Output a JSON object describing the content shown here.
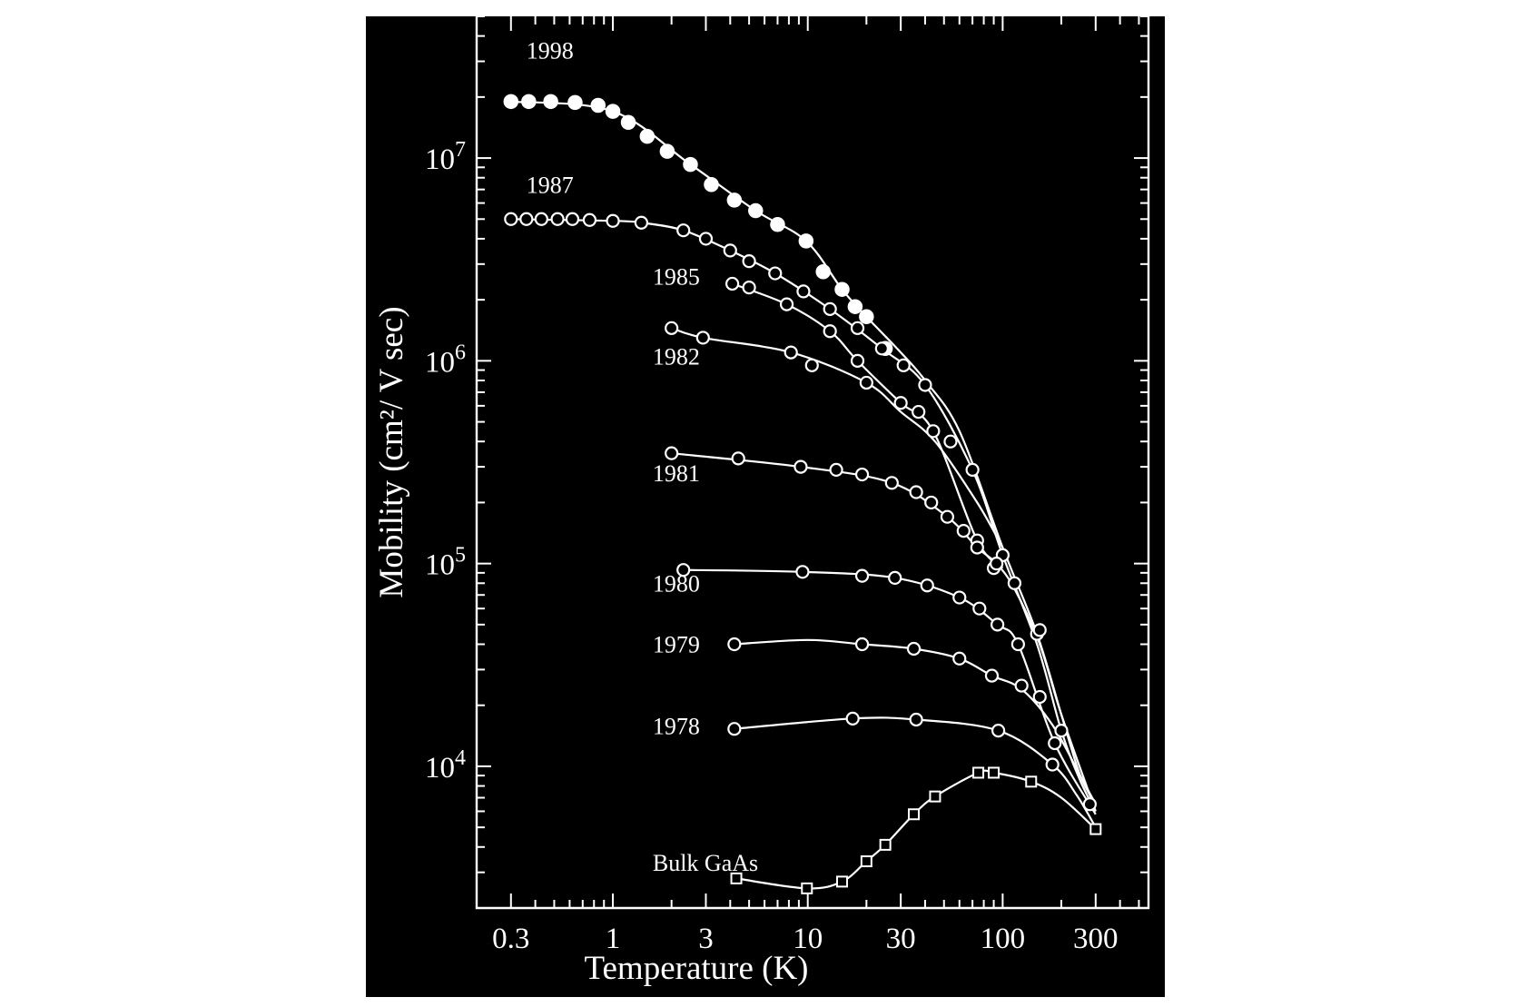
{
  "chart_data": {
    "type": "scatter",
    "title": "",
    "xlabel": "Temperature (K)",
    "ylabel": "Mobility (cm²/ V sec)",
    "x_scale": "log",
    "y_scale": "log",
    "xlim": [
      0.2,
      560
    ],
    "ylim": [
      2000,
      50000000
    ],
    "x_ticks": [
      0.3,
      1,
      3,
      10,
      30,
      100,
      300
    ],
    "x_tick_labels": [
      "0.3",
      "1",
      "3",
      "10",
      "30",
      "100",
      "300"
    ],
    "y_ticks": [
      10000,
      100000,
      1000000,
      10000000
    ],
    "y_tick_labels": [
      {
        "base": "10",
        "exp": "4"
      },
      {
        "base": "10",
        "exp": "5"
      },
      {
        "base": "10",
        "exp": "6"
      },
      {
        "base": "10",
        "exp": "7"
      }
    ],
    "grid": false,
    "legend": "none",
    "colors": {
      "background": "#000000",
      "foreground": "#ffffff"
    },
    "series": [
      {
        "name": "1998",
        "marker": "filled-circle",
        "x": [
          0.3,
          0.37,
          0.48,
          0.64,
          0.84,
          1.0,
          1.2,
          1.5,
          1.9,
          2.5,
          3.2,
          4.2,
          5.4,
          7,
          9.8,
          12,
          15,
          17.5,
          20,
          25
        ],
        "y": [
          19000000,
          19000000,
          19000000,
          18800000,
          18200000,
          17000000,
          15000000,
          12800000,
          10800000,
          9300000,
          7400000,
          6200000,
          5500000,
          4700000,
          3900000,
          2750000,
          2250000,
          1850000,
          1650000,
          1150000
        ]
      },
      {
        "name": "1987",
        "marker": "open-circle",
        "x": [
          0.3,
          0.36,
          0.43,
          0.52,
          0.62,
          0.76,
          1.0,
          1.4,
          2.3,
          3.0,
          4.0,
          5.0,
          6.8,
          9.5,
          13,
          18,
          24,
          31,
          40,
          54,
          70,
          100,
          150,
          200
        ],
        "y": [
          5000000,
          5000000,
          5000000,
          5000000,
          5000000,
          4950000,
          4900000,
          4800000,
          4400000,
          4000000,
          3500000,
          3100000,
          2700000,
          2200000,
          1800000,
          1450000,
          1150000,
          950000,
          760000,
          400000,
          290000,
          110000,
          45000,
          15000
        ]
      },
      {
        "name": "1985",
        "marker": "open-circle",
        "x": [
          4.1,
          5.0,
          7.8,
          13,
          18,
          30,
          37,
          44,
          74,
          90
        ],
        "y": [
          2400000,
          2300000,
          1900000,
          1400000,
          1000000,
          620000,
          560000,
          450000,
          130000,
          95000
        ]
      },
      {
        "name": "1982",
        "marker": "open-circle",
        "x": [
          2.0,
          2.9,
          8.2,
          10.5,
          20
        ],
        "y": [
          1450000,
          1300000,
          1100000,
          950000,
          780000
        ]
      },
      {
        "name": "1981",
        "marker": "open-circle",
        "x": [
          2.0,
          4.4,
          9.2,
          14,
          19,
          27,
          36,
          43,
          52,
          63,
          74,
          93,
          115,
          155
        ],
        "y": [
          350000,
          330000,
          300000,
          290000,
          275000,
          250000,
          225000,
          200000,
          170000,
          145000,
          120000,
          100000,
          80000,
          47000
        ]
      },
      {
        "name": "1980",
        "marker": "open-circle",
        "x": [
          2.3,
          9.4,
          19,
          28,
          41,
          60,
          76,
          94,
          120,
          185
        ],
        "y": [
          93000,
          91000,
          87000,
          85000,
          78000,
          68000,
          60000,
          50000,
          40000,
          13000
        ]
      },
      {
        "name": "1979",
        "marker": "open-circle",
        "x": [
          4.2,
          19,
          35,
          60,
          88,
          125,
          155
        ],
        "y": [
          40000,
          40000,
          38000,
          34000,
          28000,
          25000,
          22000
        ]
      },
      {
        "name": "1978",
        "marker": "open-circle",
        "x": [
          4.2,
          17,
          36,
          95,
          180,
          280
        ],
        "y": [
          15300,
          17200,
          17000,
          15000,
          10200,
          6500
        ]
      },
      {
        "name": "Bulk GaAs",
        "marker": "open-square",
        "x": [
          4.3,
          9.9,
          15,
          20,
          25,
          35,
          45,
          75,
          90,
          140,
          300
        ],
        "y": [
          2800,
          2500,
          2700,
          3400,
          4100,
          5800,
          7100,
          9300,
          9300,
          8400,
          4900
        ]
      }
    ],
    "curves": [
      {
        "series": "1998",
        "x": [
          0.3,
          1.0,
          2.5,
          5.4,
          9.8,
          15,
          20,
          30,
          40,
          60,
          100,
          150,
          200,
          250,
          300
        ],
        "y": [
          19000000,
          17000000,
          9300000,
          5500000,
          3900000,
          2250000,
          1650000,
          1100000,
          800000,
          450000,
          120000,
          45000,
          18000,
          9000,
          6500
        ]
      },
      {
        "series": "1987",
        "x": [
          0.3,
          1.0,
          1.4,
          2.3,
          4.0,
          6.8,
          13,
          24,
          40,
          70,
          100,
          150,
          200,
          250,
          300
        ],
        "y": [
          5000000,
          4900000,
          4800000,
          4400000,
          3500000,
          2700000,
          1800000,
          1150000,
          760000,
          290000,
          110000,
          40000,
          15000,
          8500,
          6000
        ]
      },
      {
        "series": "1985",
        "x": [
          4.1,
          7.8,
          13,
          18,
          30,
          44,
          74,
          100
        ],
        "y": [
          2400000,
          1900000,
          1400000,
          1000000,
          620000,
          450000,
          130000,
          95000
        ]
      },
      {
        "series": "1982",
        "x": [
          2.0,
          2.9,
          8.2,
          20,
          30,
          45,
          74,
          100
        ],
        "y": [
          1450000,
          1300000,
          1100000,
          780000,
          560000,
          400000,
          200000,
          120000
        ]
      },
      {
        "series": "1981",
        "x": [
          2.0,
          9.2,
          27,
          52,
          74,
          93,
          115,
          155,
          200,
          300
        ],
        "y": [
          350000,
          300000,
          250000,
          170000,
          120000,
          100000,
          75000,
          40000,
          18000,
          6000
        ]
      },
      {
        "series": "1980",
        "x": [
          2.3,
          9.4,
          28,
          60,
          94,
          120,
          185,
          300
        ],
        "y": [
          93000,
          91000,
          85000,
          68000,
          50000,
          40000,
          13000,
          5800
        ]
      },
      {
        "series": "1979",
        "x": [
          4.2,
          10,
          19,
          35,
          60,
          88,
          125,
          180,
          250,
          300
        ],
        "y": [
          40000,
          42000,
          40000,
          38000,
          34000,
          28000,
          24000,
          16000,
          9000,
          6500
        ]
      },
      {
        "series": "1978",
        "x": [
          4.2,
          17,
          36,
          95,
          180,
          240,
          300
        ],
        "y": [
          15300,
          17200,
          17000,
          15000,
          10200,
          7200,
          5000
        ]
      },
      {
        "series": "Bulk GaAs",
        "x": [
          4.3,
          9.9,
          15,
          20,
          25,
          35,
          45,
          75,
          90,
          140,
          200,
          300
        ],
        "y": [
          2800,
          2500,
          2700,
          3400,
          4100,
          5800,
          7100,
          9300,
          9300,
          8400,
          7000,
          4900
        ]
      }
    ]
  }
}
